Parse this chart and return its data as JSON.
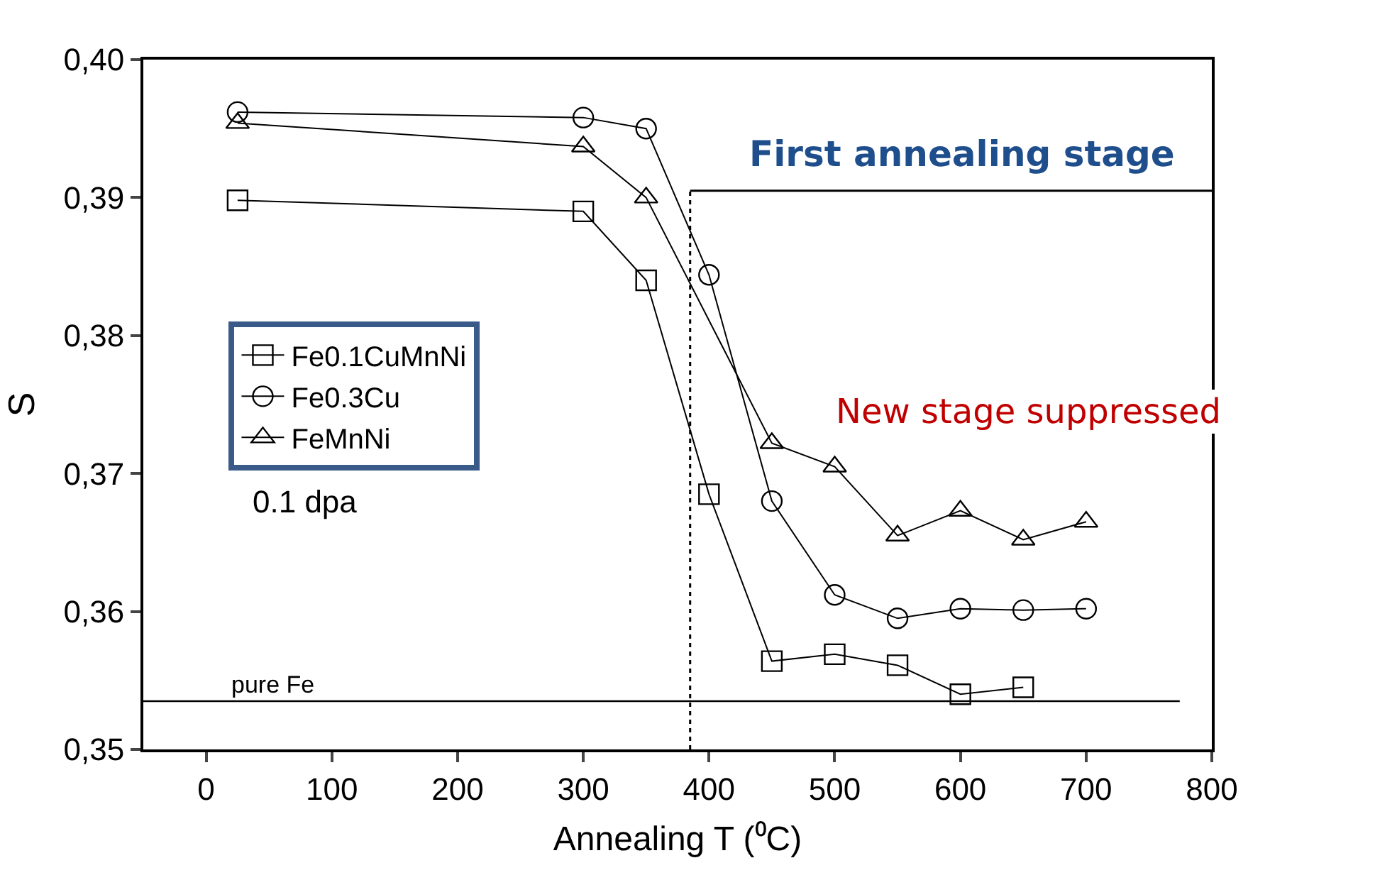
{
  "chart_data": {
    "type": "line",
    "xlabel": "Annealing T (⁰C)",
    "ylabel": "S",
    "xlim": [
      -50,
      800
    ],
    "xticks": [
      0,
      100,
      200,
      300,
      400,
      500,
      600,
      700,
      800
    ],
    "ylim": [
      0.35,
      0.4
    ],
    "yticks": [
      {
        "value": 0.35,
        "label": "0,35"
      },
      {
        "value": 0.36,
        "label": "0,36"
      },
      {
        "value": 0.37,
        "label": "0,37"
      },
      {
        "value": 0.38,
        "label": "0,38"
      },
      {
        "value": 0.39,
        "label": "0,39"
      },
      {
        "value": 0.4,
        "label": "0,40"
      }
    ],
    "series": [
      {
        "name": "Fe0.1CuMnNi",
        "color": "#000000",
        "marker": "square",
        "x": [
          25,
          300,
          350,
          400,
          450,
          500,
          550,
          600,
          650
        ],
        "values": [
          0.3898,
          0.389,
          0.384,
          0.3685,
          0.3564,
          0.3569,
          0.3561,
          0.354,
          0.3545
        ]
      },
      {
        "name": "Fe0.3Cu",
        "color": "#000000",
        "marker": "circle",
        "x": [
          25,
          300,
          350,
          400,
          450,
          500,
          550,
          600,
          650,
          700
        ],
        "values": [
          0.3962,
          0.3958,
          0.395,
          0.3844,
          0.368,
          0.3612,
          0.3595,
          0.3602,
          0.3601,
          0.3602
        ]
      },
      {
        "name": "FeMnNi",
        "color": "#000000",
        "marker": "triangle",
        "x": [
          25,
          300,
          350,
          450,
          500,
          550,
          600,
          650,
          700
        ],
        "values": [
          0.3954,
          0.3937,
          0.39,
          0.3722,
          0.3705,
          0.3655,
          0.3673,
          0.3652,
          0.3665
        ]
      }
    ],
    "ref_lines": [
      {
        "axis": "y",
        "value": 0.3535,
        "label": "pure Fe",
        "color": "#000000",
        "line_style": "solid"
      },
      {
        "axis": "x",
        "value": 385,
        "label": "First annealing stage",
        "color": "#000000",
        "line_style": "dotted"
      }
    ],
    "annotations": [
      "0.1 dpa",
      "New stage suppressed"
    ],
    "legend": "left"
  }
}
